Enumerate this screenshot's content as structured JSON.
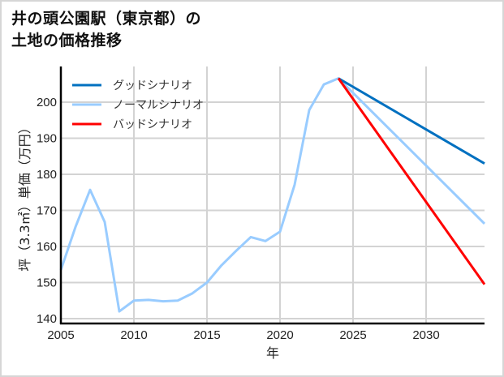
{
  "title_line1": "井の頭公園駅（東京都）の",
  "title_line2": "土地の価格推移",
  "chart_data": {
    "type": "line",
    "title": "井の頭公園駅（東京都）の土地の価格推移",
    "xlabel": "年",
    "ylabel": "坪（3.3㎡）単価（万円）",
    "xlim": [
      2005,
      2034
    ],
    "ylim": [
      139,
      210
    ],
    "xticks": [
      2005,
      2010,
      2015,
      2020,
      2025,
      2030
    ],
    "yticks": [
      140,
      150,
      160,
      170,
      180,
      190,
      200
    ],
    "grid": true,
    "legend_position": "upper left",
    "series": [
      {
        "name": "グッドシナリオ",
        "color": "#0070c0",
        "x": [
          2024,
          2034
        ],
        "values": [
          206.6,
          183.0
        ]
      },
      {
        "name": "ノーマルシナリオ",
        "color": "#99ccff",
        "x": [
          2005,
          2006,
          2007,
          2008,
          2009,
          2010,
          2011,
          2012,
          2013,
          2014,
          2015,
          2016,
          2017,
          2018,
          2019,
          2020,
          2021,
          2022,
          2023,
          2024,
          2034
        ],
        "values": [
          153.5,
          165.4,
          175.7,
          166.8,
          142.0,
          145.0,
          145.2,
          144.8,
          145.0,
          147.0,
          150.0,
          154.8,
          158.8,
          162.6,
          161.5,
          164.1,
          177.1,
          197.8,
          204.9,
          206.6,
          166.3
        ]
      },
      {
        "name": "バッドシナリオ",
        "color": "#ff0000",
        "x": [
          2024,
          2034
        ],
        "values": [
          206.6,
          149.5
        ]
      }
    ]
  }
}
